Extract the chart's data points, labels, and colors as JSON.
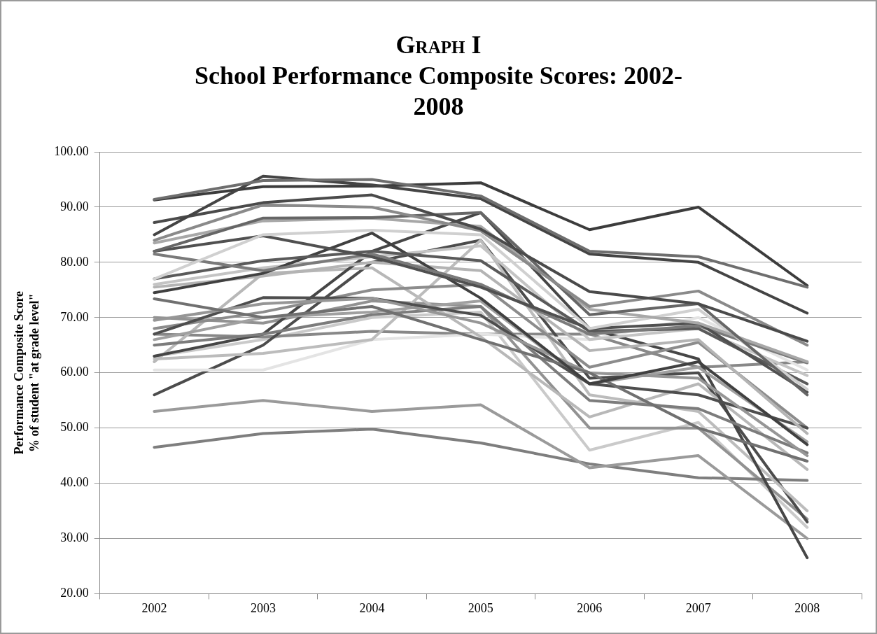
{
  "chart_data": {
    "type": "line",
    "title": "Graph I",
    "subtitle": "School Performance Composite Scores: 2002-2008",
    "ylabel": "Performance Composite Score\n% of student \"at grade level\"",
    "categories": [
      "2002",
      "2003",
      "2004",
      "2005",
      "2006",
      "2007",
      "2008"
    ],
    "series": [
      {
        "color": "#6e6e6e",
        "values": [
          91.4,
          94.8,
          95,
          92,
          82,
          81,
          75.5
        ]
      },
      {
        "color": "#444444",
        "values": [
          85,
          95.6,
          94,
          91.5,
          81.5,
          80,
          70.8
        ]
      },
      {
        "color": "#3c3c3c",
        "values": [
          91.3,
          93.7,
          93.8,
          94.4,
          85.9,
          90,
          75.8
        ]
      },
      {
        "color": "#4a4a4a",
        "values": [
          87.2,
          90.8,
          92.2,
          86,
          74.7,
          72.5,
          65.7
        ]
      },
      {
        "color": "#8a8a8a",
        "values": [
          84,
          90.4,
          90,
          85.7,
          72,
          74.8,
          65
        ]
      },
      {
        "color": "#666666",
        "values": [
          82,
          88,
          88.1,
          89,
          70.5,
          72.5,
          56
        ]
      },
      {
        "color": "#a8a8a8",
        "values": [
          83.5,
          87.5,
          88,
          86.5,
          71.5,
          69,
          62
        ]
      },
      {
        "color": "#d0d0d0",
        "values": [
          77,
          85,
          85.8,
          85,
          68,
          71.5,
          57
        ]
      },
      {
        "color": "#505050",
        "values": [
          82,
          84.8,
          81,
          75.5,
          68,
          69,
          56.5
        ]
      },
      {
        "color": "#7a7a7a",
        "values": [
          81.5,
          78.5,
          81.5,
          76,
          67,
          68.5,
          61.8
        ]
      },
      {
        "color": "#5a5a5a",
        "values": [
          77,
          80.3,
          82,
          80.3,
          67.5,
          68,
          58
        ]
      },
      {
        "color": "#404040",
        "values": [
          74.5,
          78,
          85.3,
          73.5,
          58,
          62,
          47
        ]
      },
      {
        "color": "#c4c4c4",
        "values": [
          76,
          79,
          81,
          83,
          66,
          68,
          59.5
        ]
      },
      {
        "color": "#b4b4b4",
        "values": [
          75.5,
          77.5,
          80,
          78.5,
          64,
          66,
          49
        ]
      },
      {
        "color": "#707070",
        "values": [
          73.4,
          70,
          72,
          66,
          60,
          50,
          44
        ]
      },
      {
        "color": "#969696",
        "values": [
          69.5,
          72.5,
          73.5,
          69,
          60,
          59,
          45
        ]
      },
      {
        "color": "#4e4e4e",
        "values": [
          67,
          73.6,
          73.5,
          70.4,
          58,
          56,
          50
        ]
      },
      {
        "color": "#8c8c8c",
        "values": [
          68,
          71,
          75,
          76,
          61,
          65.5,
          50
        ]
      },
      {
        "color": "#a0a0a0",
        "values": [
          66,
          70,
          71,
          73,
          58,
          61,
          47.5
        ]
      },
      {
        "color": "#7c7c7c",
        "values": [
          65,
          67,
          70.5,
          72,
          55,
          53.5,
          45.5
        ]
      },
      {
        "color": "#464646",
        "values": [
          63,
          67,
          82,
          89,
          68,
          62.5,
          26.5
        ]
      },
      {
        "color": "#bcbcbc",
        "values": [
          62.5,
          63.5,
          66,
          84,
          56,
          53,
          35
        ]
      },
      {
        "color": "#b8b8b8",
        "values": [
          62,
          78,
          79,
          66.5,
          52,
          58,
          42.5
        ]
      },
      {
        "color": "#e4e4e4",
        "values": [
          60.5,
          60.5,
          66,
          67,
          66,
          70,
          60.5
        ]
      },
      {
        "color": "#4c4c4c",
        "values": [
          56,
          65,
          80,
          84,
          59,
          60,
          33
        ]
      },
      {
        "color": "#9a9a9a",
        "values": [
          53,
          55,
          53,
          54.2,
          42.8,
          45,
          30
        ]
      },
      {
        "color": "#7e7e7e",
        "values": [
          46.5,
          49,
          49.8,
          47.3,
          43.5,
          41,
          40.5
        ]
      },
      {
        "color": "#888888",
        "values": [
          67,
          66.5,
          67.5,
          67,
          67,
          61,
          62
        ]
      },
      {
        "color": "#929292",
        "values": [
          70,
          69,
          73,
          72,
          50,
          50,
          33.5
        ]
      },
      {
        "color": "#cacaca",
        "values": [
          63,
          66,
          70,
          71,
          46,
          51,
          32
        ]
      }
    ],
    "ylim": [
      20,
      100
    ],
    "yticks": [
      {
        "value": 20,
        "label": "20.00"
      },
      {
        "value": 30,
        "label": "30.00"
      },
      {
        "value": 40,
        "label": "40.00"
      },
      {
        "value": 50,
        "label": "50.00"
      },
      {
        "value": 60,
        "label": "60.00"
      },
      {
        "value": 70,
        "label": "70.00"
      },
      {
        "value": 80,
        "label": "80.00"
      },
      {
        "value": 90,
        "label": "90.00"
      },
      {
        "value": 100,
        "label": "100.00"
      }
    ],
    "grid": "y",
    "legend": false,
    "marker": "none",
    "line_style": "solid"
  }
}
